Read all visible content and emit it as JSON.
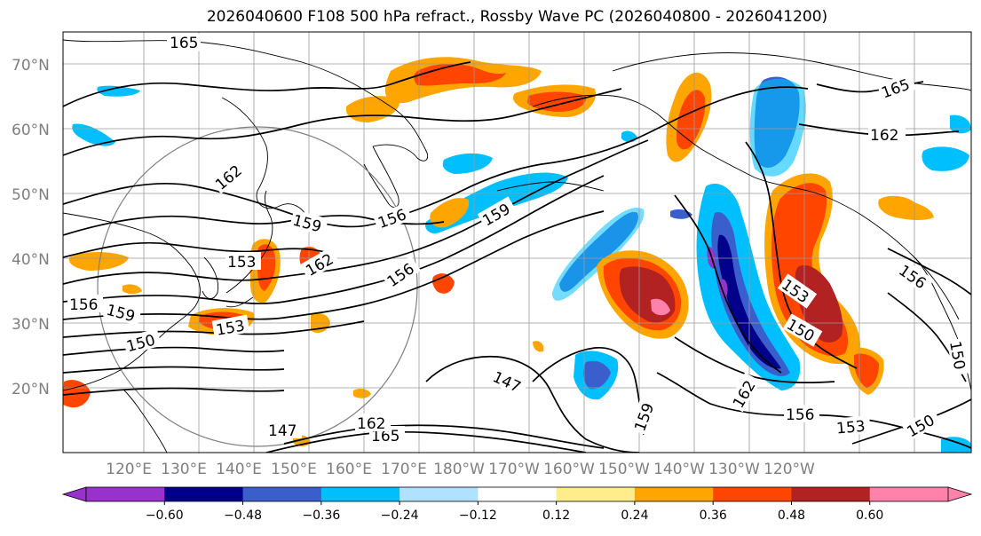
{
  "title": "2026040600 F108 500 hPa refract., Rossby Wave PC (2026040800 - 2026041200)",
  "lat_labels": [
    "70°N",
    "60°N",
    "50°N",
    "40°N",
    "30°N",
    "20°N"
  ],
  "lon_labels": [
    "120°E",
    "130°E",
    "140°E",
    "150°E",
    "160°E",
    "170°E",
    "180°W",
    "170°W",
    "160°W",
    "150°W",
    "140°W",
    "130°W",
    "120°W"
  ],
  "colorbar": {
    "colors": [
      "#9932cc",
      "#00008b",
      "#3a5fcd",
      "#00bfff",
      "#b0e2ff",
      "#ffffff",
      "#ffec8b",
      "#ffa500",
      "#ff4500",
      "#b22222",
      "#ff82ab"
    ],
    "tick_labels": [
      "−0.60",
      "−0.48",
      "−0.36",
      "−0.24",
      "−0.12",
      "0.12",
      "0.24",
      "0.36",
      "0.48",
      "0.60"
    ]
  },
  "contour_labels": [
    "165",
    "162",
    "159",
    "156",
    "153",
    "156",
    "159",
    "162",
    "153",
    "150",
    "162",
    "159",
    "156",
    "153",
    "150",
    "147",
    "147",
    "159",
    "162",
    "165",
    "156",
    "165",
    "162",
    "150",
    "156",
    "150",
    "153",
    "150",
    "153",
    "156",
    "162",
    "159",
    "147"
  ]
}
